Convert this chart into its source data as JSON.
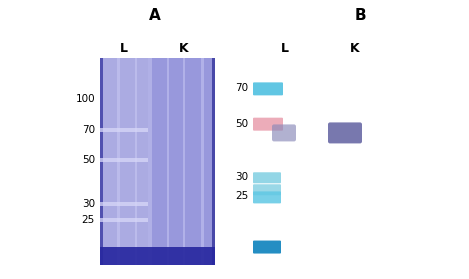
{
  "panel_A_title": "A",
  "panel_B_title": "B",
  "label_L": "L",
  "label_K": "K",
  "mw_markers_A": [
    100,
    70,
    50,
    30,
    25
  ],
  "mw_markers_B": [
    70,
    50,
    30,
    25
  ],
  "bg_color": "#ffffff",
  "title_fontsize": 11,
  "label_fontsize": 9,
  "marker_fontsize": 7.5,
  "gel_A_base": "#9898dc",
  "gel_A_light": "#b8b8e8",
  "gel_A_dark_edge": "#5858b8",
  "gel_A_bottom": "#3838a8",
  "gel_A_marker_band": "#c8c8f0",
  "gel_A_mid_stripe": "#a8a8e0",
  "b_band_70_color": "#50c0e0",
  "b_band_50_color": "#e898a8",
  "b_band_30_color": "#78cce0",
  "b_band_25_color": "#60c8e4",
  "b_band_bot_color": "#1888c0",
  "wb_L_color": "#8888b8",
  "wb_K_color": "#6060a0"
}
